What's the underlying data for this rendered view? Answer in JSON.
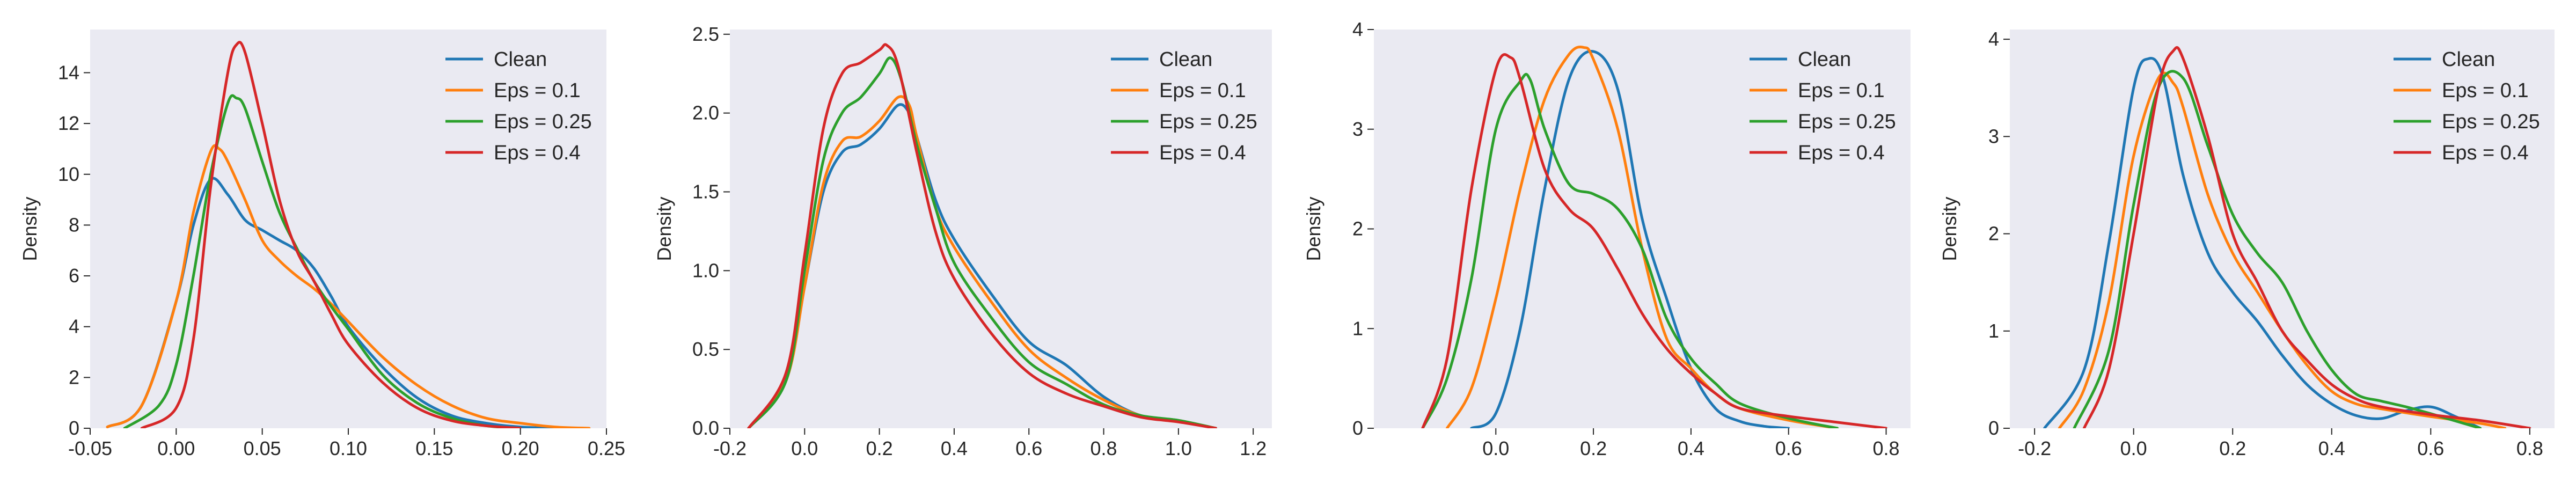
{
  "chart_data": [
    {
      "type": "line",
      "ylabel": "Density",
      "xlim": [
        -0.05,
        0.25
      ],
      "ylim": [
        0,
        15.7
      ],
      "xticks": [
        "-0.05",
        "0.00",
        "0.05",
        "0.10",
        "0.15",
        "0.20",
        "0.25"
      ],
      "xtick_values": [
        -0.05,
        0.0,
        0.05,
        0.1,
        0.15,
        0.2,
        0.25
      ],
      "yticks": [
        "0",
        "2",
        "4",
        "6",
        "8",
        "10",
        "12",
        "14"
      ],
      "ytick_values": [
        0,
        2,
        4,
        6,
        8,
        10,
        12,
        14
      ],
      "grid": false,
      "legend": "top-right",
      "series": [
        {
          "name": "Clean",
          "color": "#1f77b4",
          "x": [
            -0.04,
            -0.02,
            0.0,
            0.01,
            0.02,
            0.03,
            0.04,
            0.05,
            0.06,
            0.07,
            0.08,
            0.09,
            0.1,
            0.12,
            0.14,
            0.16,
            0.18,
            0.2,
            0.22
          ],
          "y": [
            0.05,
            0.9,
            5.0,
            8.0,
            9.8,
            9.2,
            8.2,
            7.8,
            7.4,
            7.0,
            6.3,
            5.2,
            4.0,
            2.4,
            1.2,
            0.5,
            0.2,
            0.05,
            0.0
          ]
        },
        {
          "name": "Eps = 0.1",
          "color": "#ff7f0e",
          "x": [
            -0.04,
            -0.02,
            0.0,
            0.01,
            0.02,
            0.025,
            0.03,
            0.04,
            0.05,
            0.06,
            0.07,
            0.08,
            0.09,
            0.1,
            0.12,
            0.14,
            0.16,
            0.18,
            0.2,
            0.22,
            0.24
          ],
          "y": [
            0.05,
            0.9,
            5.0,
            8.5,
            10.9,
            11.0,
            10.5,
            9.0,
            7.4,
            6.6,
            6.0,
            5.5,
            4.9,
            4.2,
            2.8,
            1.7,
            0.9,
            0.4,
            0.2,
            0.05,
            0.0
          ]
        },
        {
          "name": "Eps = 0.25",
          "color": "#2ca02c",
          "x": [
            -0.03,
            -0.01,
            0.0,
            0.01,
            0.02,
            0.03,
            0.035,
            0.04,
            0.05,
            0.06,
            0.07,
            0.08,
            0.09,
            0.1,
            0.12,
            0.14,
            0.16,
            0.18,
            0.2
          ],
          "y": [
            0.0,
            0.9,
            2.5,
            6.0,
            10.0,
            12.8,
            13.0,
            12.6,
            10.5,
            8.5,
            7.1,
            5.8,
            4.8,
            3.9,
            2.1,
            1.0,
            0.4,
            0.1,
            0.0
          ]
        },
        {
          "name": "Eps = 0.4",
          "color": "#d62728",
          "x": [
            -0.02,
            0.0,
            0.01,
            0.02,
            0.03,
            0.035,
            0.04,
            0.05,
            0.06,
            0.07,
            0.08,
            0.09,
            0.1,
            0.12,
            0.14,
            0.16,
            0.18,
            0.2
          ],
          "y": [
            0.0,
            0.8,
            3.5,
            9.5,
            14.0,
            15.1,
            14.8,
            12.0,
            9.0,
            7.0,
            5.8,
            4.5,
            3.3,
            1.8,
            0.8,
            0.3,
            0.1,
            0.0
          ]
        }
      ]
    },
    {
      "type": "line",
      "ylabel": "Density",
      "xlim": [
        -0.2,
        1.25
      ],
      "ylim": [
        0,
        2.53
      ],
      "xticks": [
        "-0.2",
        "0.0",
        "0.2",
        "0.4",
        "0.6",
        "0.8",
        "1.0",
        "1.2"
      ],
      "xtick_values": [
        -0.2,
        0.0,
        0.2,
        0.4,
        0.6,
        0.8,
        1.0,
        1.2
      ],
      "yticks": [
        "0.0",
        "0.5",
        "1.0",
        "1.5",
        "2.0",
        "2.5"
      ],
      "ytick_values": [
        0.0,
        0.5,
        1.0,
        1.5,
        2.0,
        2.5
      ],
      "grid": false,
      "legend": "top-right",
      "series": [
        {
          "name": "Clean",
          "color": "#1f77b4",
          "x": [
            -0.15,
            -0.05,
            0.0,
            0.05,
            0.1,
            0.15,
            0.2,
            0.25,
            0.28,
            0.3,
            0.35,
            0.4,
            0.5,
            0.6,
            0.7,
            0.8,
            0.9,
            1.0,
            1.1
          ],
          "y": [
            0.0,
            0.3,
            0.9,
            1.5,
            1.75,
            1.8,
            1.9,
            2.05,
            2.0,
            1.85,
            1.45,
            1.2,
            0.85,
            0.55,
            0.4,
            0.2,
            0.08,
            0.05,
            0.0
          ]
        },
        {
          "name": "Eps = 0.1",
          "color": "#ff7f0e",
          "x": [
            -0.15,
            -0.05,
            0.0,
            0.05,
            0.1,
            0.15,
            0.2,
            0.25,
            0.28,
            0.3,
            0.35,
            0.4,
            0.5,
            0.6,
            0.7,
            0.8,
            0.9,
            1.0,
            1.1
          ],
          "y": [
            0.0,
            0.3,
            0.9,
            1.55,
            1.82,
            1.85,
            1.95,
            2.1,
            2.05,
            1.85,
            1.4,
            1.15,
            0.8,
            0.5,
            0.32,
            0.18,
            0.08,
            0.05,
            0.0
          ]
        },
        {
          "name": "Eps = 0.25",
          "color": "#2ca02c",
          "x": [
            -0.15,
            -0.05,
            0.0,
            0.05,
            0.1,
            0.15,
            0.2,
            0.23,
            0.26,
            0.3,
            0.35,
            0.4,
            0.5,
            0.6,
            0.7,
            0.8,
            0.9,
            1.0,
            1.1
          ],
          "y": [
            0.0,
            0.3,
            1.0,
            1.7,
            2.0,
            2.1,
            2.25,
            2.35,
            2.2,
            1.8,
            1.4,
            1.05,
            0.7,
            0.42,
            0.28,
            0.15,
            0.08,
            0.05,
            0.0
          ]
        },
        {
          "name": "Eps = 0.4",
          "color": "#d62728",
          "x": [
            -0.15,
            -0.05,
            0.0,
            0.05,
            0.1,
            0.15,
            0.2,
            0.22,
            0.25,
            0.3,
            0.35,
            0.4,
            0.5,
            0.6,
            0.7,
            0.8,
            0.9,
            1.0,
            1.1
          ],
          "y": [
            0.0,
            0.35,
            1.1,
            1.9,
            2.25,
            2.32,
            2.4,
            2.43,
            2.3,
            1.75,
            1.25,
            0.95,
            0.6,
            0.35,
            0.22,
            0.14,
            0.07,
            0.04,
            0.0
          ]
        }
      ]
    },
    {
      "type": "line",
      "ylabel": "Density",
      "xlim": [
        -0.25,
        0.85
      ],
      "ylim": [
        0,
        4.0
      ],
      "xticks": [
        "0.0",
        "0.2",
        "0.4",
        "0.6",
        "0.8"
      ],
      "xtick_values": [
        0.0,
        0.2,
        0.4,
        0.6,
        0.8
      ],
      "yticks": [
        "0",
        "1",
        "2",
        "3",
        "4"
      ],
      "ytick_values": [
        0,
        1,
        2,
        3,
        4
      ],
      "grid": false,
      "legend": "top-right",
      "series": [
        {
          "name": "Clean",
          "color": "#1f77b4",
          "x": [
            -0.05,
            0.0,
            0.05,
            0.1,
            0.15,
            0.2,
            0.25,
            0.3,
            0.35,
            0.4,
            0.45,
            0.5,
            0.55,
            0.6
          ],
          "y": [
            0.0,
            0.15,
            1.0,
            2.4,
            3.5,
            3.78,
            3.4,
            2.1,
            1.3,
            0.6,
            0.2,
            0.07,
            0.02,
            0.0
          ]
        },
        {
          "name": "Eps = 0.1",
          "color": "#ff7f0e",
          "x": [
            -0.1,
            -0.05,
            0.0,
            0.05,
            0.1,
            0.15,
            0.18,
            0.2,
            0.25,
            0.3,
            0.35,
            0.4,
            0.45,
            0.5,
            0.6,
            0.7
          ],
          "y": [
            0.0,
            0.4,
            1.3,
            2.4,
            3.3,
            3.75,
            3.82,
            3.7,
            3.0,
            1.8,
            0.9,
            0.6,
            0.35,
            0.2,
            0.08,
            0.0
          ]
        },
        {
          "name": "Eps = 0.25",
          "color": "#2ca02c",
          "x": [
            -0.15,
            -0.1,
            -0.05,
            0.0,
            0.05,
            0.07,
            0.1,
            0.15,
            0.2,
            0.25,
            0.3,
            0.35,
            0.4,
            0.45,
            0.5,
            0.6,
            0.7
          ],
          "y": [
            0.0,
            0.5,
            1.5,
            3.0,
            3.48,
            3.5,
            3.0,
            2.45,
            2.35,
            2.2,
            1.8,
            1.1,
            0.7,
            0.45,
            0.25,
            0.1,
            0.0
          ]
        },
        {
          "name": "Eps = 0.4",
          "color": "#d62728",
          "x": [
            -0.15,
            -0.1,
            -0.05,
            0.0,
            0.03,
            0.05,
            0.1,
            0.15,
            0.2,
            0.25,
            0.3,
            0.35,
            0.4,
            0.45,
            0.5,
            0.6,
            0.7,
            0.8
          ],
          "y": [
            0.0,
            0.7,
            2.4,
            3.6,
            3.72,
            3.5,
            2.6,
            2.2,
            2.0,
            1.6,
            1.15,
            0.8,
            0.55,
            0.35,
            0.2,
            0.12,
            0.06,
            0.0
          ]
        }
      ]
    },
    {
      "type": "line",
      "ylabel": "Density",
      "xlim": [
        -0.25,
        0.85
      ],
      "ylim": [
        0,
        4.1
      ],
      "xticks": [
        "-0.2",
        "0.0",
        "0.2",
        "0.4",
        "0.6",
        "0.8"
      ],
      "xtick_values": [
        -0.2,
        0.0,
        0.2,
        0.4,
        0.6,
        0.8
      ],
      "yticks": [
        "0",
        "1",
        "2",
        "3",
        "4"
      ],
      "ytick_values": [
        0,
        1,
        2,
        3,
        4
      ],
      "grid": false,
      "legend": "top-right",
      "series": [
        {
          "name": "Clean",
          "color": "#1f77b4",
          "x": [
            -0.18,
            -0.1,
            -0.05,
            0.0,
            0.03,
            0.06,
            0.1,
            0.15,
            0.2,
            0.25,
            0.3,
            0.35,
            0.4,
            0.45,
            0.5,
            0.55,
            0.6,
            0.65,
            0.7
          ],
          "y": [
            0.0,
            0.6,
            1.9,
            3.5,
            3.8,
            3.6,
            2.6,
            1.8,
            1.4,
            1.1,
            0.75,
            0.45,
            0.25,
            0.13,
            0.1,
            0.18,
            0.22,
            0.12,
            0.0
          ]
        },
        {
          "name": "Eps = 0.1",
          "color": "#ff7f0e",
          "x": [
            -0.15,
            -0.1,
            -0.05,
            0.0,
            0.05,
            0.08,
            0.1,
            0.15,
            0.2,
            0.25,
            0.3,
            0.35,
            0.4,
            0.45,
            0.5,
            0.6,
            0.7,
            0.75
          ],
          "y": [
            0.0,
            0.4,
            1.3,
            2.8,
            3.6,
            3.55,
            3.3,
            2.4,
            1.8,
            1.4,
            1.0,
            0.65,
            0.38,
            0.25,
            0.2,
            0.12,
            0.05,
            0.0
          ]
        },
        {
          "name": "Eps = 0.25",
          "color": "#2ca02c",
          "x": [
            -0.12,
            -0.05,
            0.0,
            0.05,
            0.1,
            0.15,
            0.2,
            0.25,
            0.3,
            0.35,
            0.4,
            0.45,
            0.5,
            0.55,
            0.6,
            0.7
          ],
          "y": [
            0.0,
            0.8,
            2.3,
            3.5,
            3.6,
            2.9,
            2.2,
            1.8,
            1.5,
            1.0,
            0.6,
            0.35,
            0.28,
            0.22,
            0.15,
            0.0
          ]
        },
        {
          "name": "Eps = 0.4",
          "color": "#d62728",
          "x": [
            -0.1,
            -0.05,
            0.0,
            0.05,
            0.08,
            0.1,
            0.15,
            0.2,
            0.25,
            0.3,
            0.35,
            0.4,
            0.45,
            0.5,
            0.6,
            0.7,
            0.8
          ],
          "y": [
            0.0,
            0.6,
            2.0,
            3.5,
            3.88,
            3.8,
            3.0,
            2.0,
            1.5,
            1.0,
            0.7,
            0.45,
            0.3,
            0.22,
            0.14,
            0.08,
            0.0
          ]
        }
      ]
    }
  ]
}
